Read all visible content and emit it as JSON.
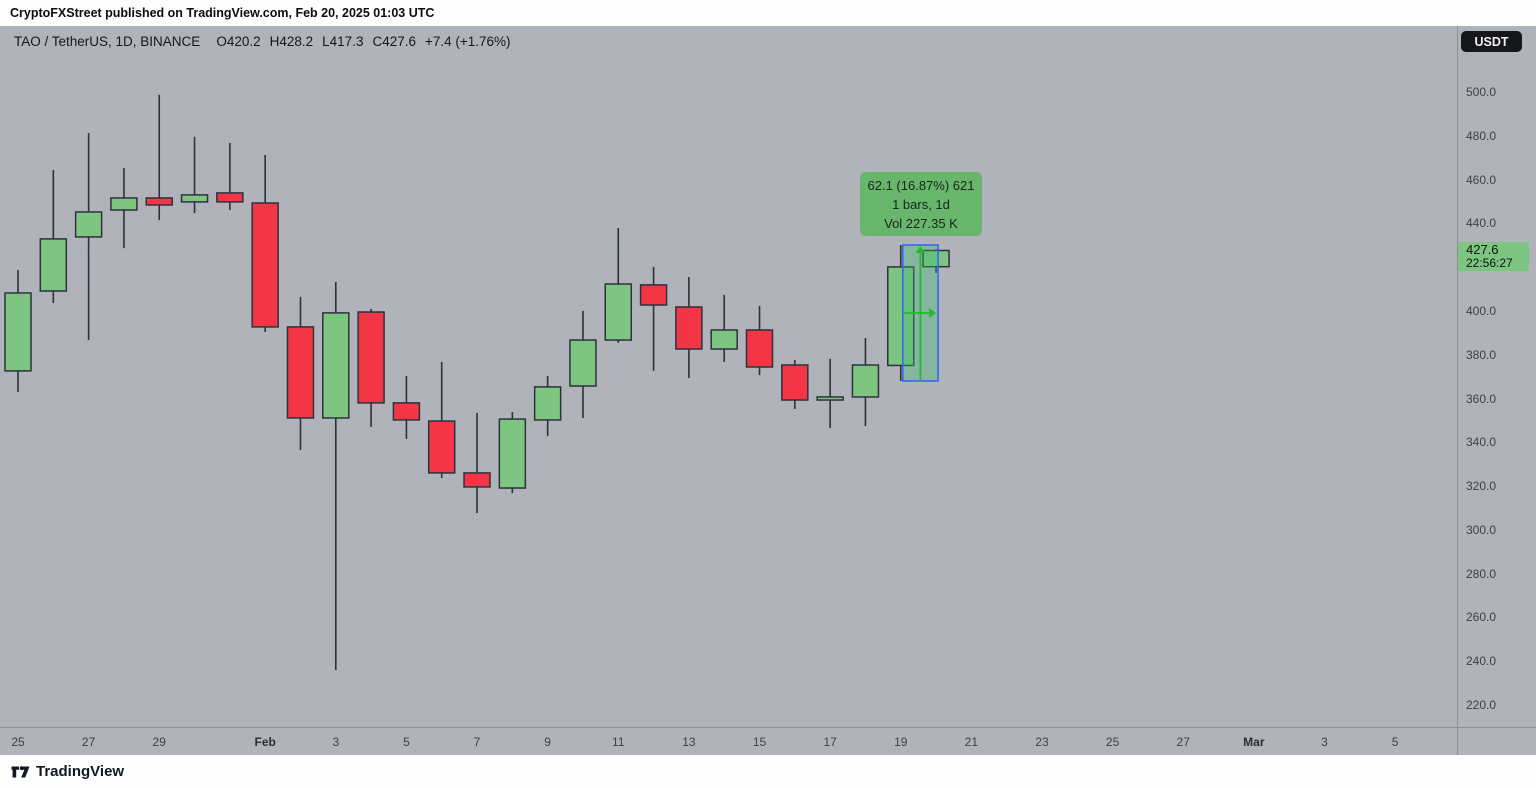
{
  "publisher_bar": {
    "text": "CryptoFXStreet published on TradingView.com, Feb 20, 2025 01:03 UTC"
  },
  "symbol_bar": {
    "symbol": "TAO / TetherUS, 1D, BINANCE",
    "open": "O420.2",
    "high": "H428.2",
    "low": "L417.3",
    "close": "C427.6",
    "change": "+7.4 (+1.76%)"
  },
  "price_axis": {
    "currency_button": "USDT",
    "ticks": [
      "500.0",
      "480.0",
      "460.0",
      "440.0",
      "400.0",
      "380.0",
      "360.0",
      "340.0",
      "320.0",
      "300.0",
      "280.0",
      "260.0",
      "240.0",
      "220.0"
    ],
    "last_price_label": {
      "price": "427.6",
      "countdown": "22:56:27"
    }
  },
  "time_axis": {
    "ticks": [
      {
        "label": "25",
        "bar": 0
      },
      {
        "label": "27",
        "bar": 2
      },
      {
        "label": "29",
        "bar": 4
      },
      {
        "label": "Feb",
        "bar": 7,
        "bold": true
      },
      {
        "label": "3",
        "bar": 9
      },
      {
        "label": "5",
        "bar": 11
      },
      {
        "label": "7",
        "bar": 13
      },
      {
        "label": "9",
        "bar": 15
      },
      {
        "label": "11",
        "bar": 17
      },
      {
        "label": "13",
        "bar": 19
      },
      {
        "label": "15",
        "bar": 21
      },
      {
        "label": "17",
        "bar": 23
      },
      {
        "label": "19",
        "bar": 25
      },
      {
        "label": "21",
        "bar": 27
      },
      {
        "label": "23",
        "bar": 29
      },
      {
        "label": "25",
        "bar": 31
      },
      {
        "label": "27",
        "bar": 33
      },
      {
        "label": "Mar",
        "bar": 35,
        "bold": true
      },
      {
        "label": "3",
        "bar": 37
      },
      {
        "label": "5",
        "bar": 39
      }
    ]
  },
  "measure_tooltip": {
    "line1": "62.1 (16.87%) 621",
    "line2": "1 bars, 1d",
    "line3": "Vol 227.35 K"
  },
  "footer": {
    "brand": "TradingView"
  },
  "colors": {
    "background": "#b0b3ba",
    "up_body": "#7ec581",
    "down_body": "#f23645",
    "candle_border": "#2d313c",
    "wick": "#2d313c",
    "last_price_line": "#7cbd81",
    "last_price_label_bg": "#7ec581",
    "measure_fill": "rgba(56,190,110,0.35)",
    "measure_stroke": "#2f62ff",
    "measure_arrow": "#27b830",
    "tooltip_bg": "#68b66c",
    "axis_text": "#3d404a",
    "currency_button_bg": "#16171b"
  },
  "chart_data": {
    "type": "candlestick",
    "symbol": "TAO/TetherUS",
    "exchange": "BINANCE",
    "interval": "1D",
    "ylim": [
      210,
      530
    ],
    "price_ticks": [
      500,
      480,
      460,
      440,
      400,
      380,
      360,
      340,
      320,
      300,
      280,
      260,
      240,
      220
    ],
    "last_price": 427.6,
    "candles": [
      {
        "date": "Jan 25",
        "o": 372.6,
        "h": 418.7,
        "l": 363.0,
        "c": 408.2
      },
      {
        "date": "Jan 26",
        "o": 409.1,
        "h": 464.4,
        "l": 403.6,
        "c": 432.9
      },
      {
        "date": "Jan 27",
        "o": 433.8,
        "h": 481.3,
        "l": 386.7,
        "c": 445.2
      },
      {
        "date": "Jan 28",
        "o": 446.1,
        "h": 465.3,
        "l": 428.7,
        "c": 451.6
      },
      {
        "date": "Jan 29",
        "o": 451.6,
        "h": 498.7,
        "l": 441.5,
        "c": 448.4
      },
      {
        "date": "Jan 30",
        "o": 449.8,
        "h": 479.5,
        "l": 444.7,
        "c": 453.0
      },
      {
        "date": "Jan 31",
        "o": 453.9,
        "h": 476.7,
        "l": 446.1,
        "c": 449.8
      },
      {
        "date": "Feb 1",
        "o": 449.3,
        "h": 471.2,
        "l": 390.4,
        "c": 392.7
      },
      {
        "date": "Feb 2",
        "o": 392.7,
        "h": 406.4,
        "l": 336.5,
        "c": 351.1
      },
      {
        "date": "Feb 3",
        "o": 351.1,
        "h": 413.2,
        "l": 236.0,
        "c": 399.1
      },
      {
        "date": "Feb 4",
        "o": 399.5,
        "h": 400.9,
        "l": 347.0,
        "c": 358.0
      },
      {
        "date": "Feb 5",
        "o": 358.0,
        "h": 370.3,
        "l": 341.5,
        "c": 350.2
      },
      {
        "date": "Feb 6",
        "o": 349.7,
        "h": 376.7,
        "l": 323.7,
        "c": 326.0
      },
      {
        "date": "Feb 7",
        "o": 326.0,
        "h": 353.4,
        "l": 307.7,
        "c": 319.6
      },
      {
        "date": "Feb 8",
        "o": 319.1,
        "h": 353.8,
        "l": 316.8,
        "c": 350.6
      },
      {
        "date": "Feb 9",
        "o": 350.2,
        "h": 370.3,
        "l": 342.9,
        "c": 365.3
      },
      {
        "date": "Feb 10",
        "o": 365.7,
        "h": 400.0,
        "l": 351.1,
        "c": 386.7
      },
      {
        "date": "Feb 11",
        "o": 386.7,
        "h": 437.9,
        "l": 385.4,
        "c": 412.3
      },
      {
        "date": "Feb 12",
        "o": 411.9,
        "h": 420.1,
        "l": 372.6,
        "c": 402.7
      },
      {
        "date": "Feb 13",
        "o": 401.8,
        "h": 415.5,
        "l": 369.4,
        "c": 382.6
      },
      {
        "date": "Feb 14",
        "o": 382.6,
        "h": 407.3,
        "l": 376.7,
        "c": 391.3
      },
      {
        "date": "Feb 15",
        "o": 391.3,
        "h": 402.3,
        "l": 370.7,
        "c": 374.4
      },
      {
        "date": "Feb 16",
        "o": 375.3,
        "h": 377.6,
        "l": 355.2,
        "c": 359.3
      },
      {
        "date": "Feb 17",
        "o": 359.3,
        "h": 378.1,
        "l": 346.5,
        "c": 360.7
      },
      {
        "date": "Feb 18",
        "o": 360.7,
        "h": 387.6,
        "l": 347.4,
        "c": 375.3
      },
      {
        "date": "Feb 19",
        "o": 375.1,
        "h": 430.1,
        "l": 368.0,
        "c": 420.1
      },
      {
        "date": "Feb 20",
        "o": 420.2,
        "h": 428.2,
        "l": 417.3,
        "c": 427.6
      }
    ],
    "measurement": {
      "from_index": 25,
      "to_index": 26,
      "price_low": 368.0,
      "price_high": 430.1,
      "change": 62.1,
      "change_pct": 16.87,
      "bars": 1,
      "interval": "1d",
      "volume": "227.35 K"
    }
  }
}
